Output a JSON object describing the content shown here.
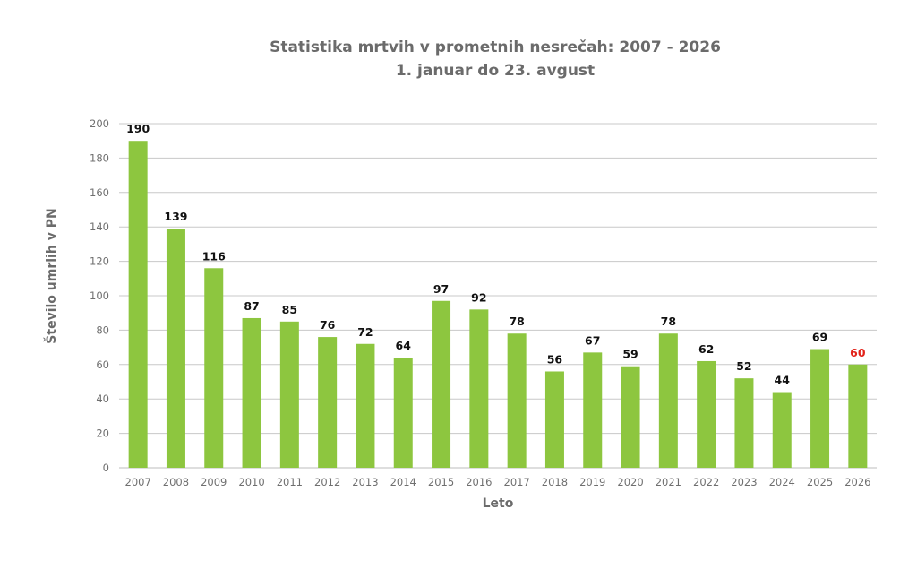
{
  "chart_data": {
    "type": "bar",
    "title": "Statistika mrtvih v prometnih nesrečah: 2007 - 2026",
    "subtitle": "1. januar do 23. avgust",
    "xlabel": "Leto",
    "ylabel": "Število umrlih v PN",
    "ylim": [
      0,
      200
    ],
    "yticks": [
      0,
      20,
      40,
      60,
      80,
      100,
      120,
      140,
      160,
      180,
      200
    ],
    "grid": true,
    "legend": "none",
    "categories": [
      "2007",
      "2008",
      "2009",
      "2010",
      "2011",
      "2012",
      "2013",
      "2014",
      "2015",
      "2016",
      "2017",
      "2018",
      "2019",
      "2020",
      "2021",
      "2022",
      "2023",
      "2024",
      "2025",
      "2026"
    ],
    "values": [
      190,
      139,
      116,
      87,
      85,
      76,
      72,
      64,
      97,
      92,
      78,
      56,
      67,
      59,
      78,
      62,
      52,
      44,
      69,
      60
    ],
    "bar_color": "#8dc63f",
    "label_color": "#111111",
    "highlight_label_color": "#e2231a",
    "highlight_index": 19,
    "grid_color": "#c8c8c8",
    "axis_color": "#bdbdbd"
  }
}
